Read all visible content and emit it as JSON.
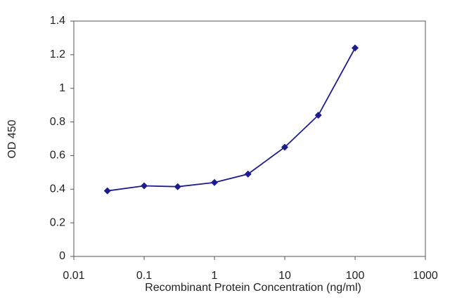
{
  "chart_data": {
    "type": "line",
    "x_label": "Recombinant Protein Concentration (ng/ml)",
    "y_label": "OD 450",
    "xscale": "log",
    "x": [
      0.03,
      0.1,
      0.3,
      1,
      3,
      10,
      30,
      100
    ],
    "series": [
      {
        "name": "OD 450",
        "color": "#1c1c8f",
        "values": [
          0.39,
          0.42,
          0.415,
          0.44,
          0.49,
          0.65,
          0.84,
          1.24
        ]
      }
    ],
    "xlim": [
      0.01,
      1000
    ],
    "xticks": [
      0.01,
      0.1,
      1,
      10,
      100,
      1000
    ],
    "ylim": [
      0,
      1.4
    ],
    "yticks": [
      0,
      0.2,
      0.4,
      0.6,
      0.8,
      1,
      1.2,
      1.4
    ],
    "grid": false
  }
}
